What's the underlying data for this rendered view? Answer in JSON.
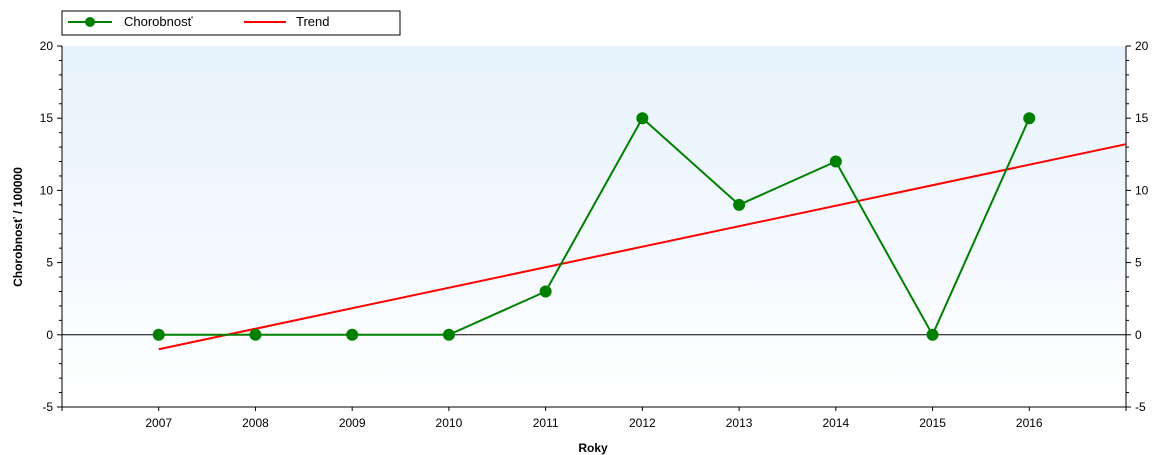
{
  "chart_data": {
    "type": "line",
    "xlabel": "Roky",
    "ylabel": "Chorobnosť / 100000",
    "ylim": [
      -5,
      20
    ],
    "yticks": [
      -5,
      0,
      5,
      10,
      15,
      20
    ],
    "x_categories": [
      "2007",
      "2008",
      "2009",
      "2010",
      "2011",
      "2012",
      "2013",
      "2014",
      "2015",
      "2016"
    ],
    "series": [
      {
        "name": "Chorobnosť",
        "kind": "line-with-markers",
        "color": "#008000",
        "x": [
          "2007",
          "2008",
          "2009",
          "2010",
          "2011",
          "2012",
          "2013",
          "2014",
          "2015",
          "2016"
        ],
        "values": [
          0,
          0,
          0,
          0,
          3,
          15,
          9,
          12,
          0,
          15
        ]
      },
      {
        "name": "Trend",
        "kind": "line",
        "color": "#ff0000",
        "x_range": [
          "2007",
          "2017"
        ],
        "values": [
          -1.0,
          13.2
        ]
      }
    ],
    "legend": "top-left",
    "grid": false,
    "zero_line": true,
    "background_gradient": [
      "#e6f2fc",
      "#ffffff"
    ]
  }
}
